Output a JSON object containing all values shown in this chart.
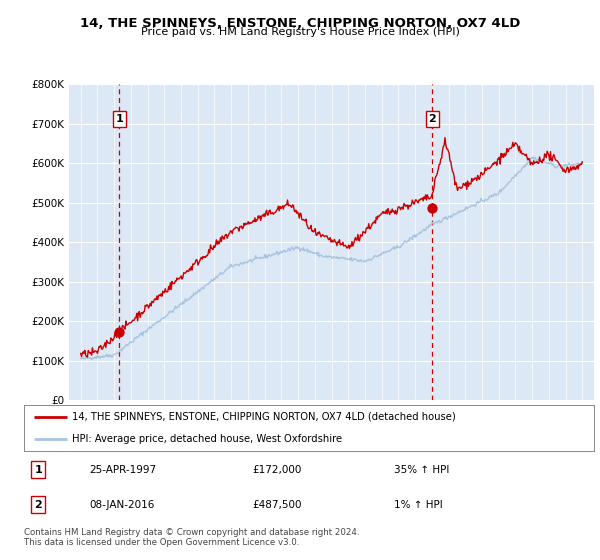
{
  "title": "14, THE SPINNEYS, ENSTONE, CHIPPING NORTON, OX7 4LD",
  "subtitle": "Price paid vs. HM Land Registry's House Price Index (HPI)",
  "legend_line1": "14, THE SPINNEYS, ENSTONE, CHIPPING NORTON, OX7 4LD (detached house)",
  "legend_line2": "HPI: Average price, detached house, West Oxfordshire",
  "marker1_label": "1",
  "marker2_label": "2",
  "marker1_date": "25-APR-1997",
  "marker1_price": "£172,000",
  "marker1_hpi": "35% ↑ HPI",
  "marker2_date": "08-JAN-2016",
  "marker2_price": "£487,500",
  "marker2_hpi": "1% ↑ HPI",
  "footer": "Contains HM Land Registry data © Crown copyright and database right 2024.\nThis data is licensed under the Open Government Licence v3.0.",
  "hpi_color": "#aac4e0",
  "price_color": "#cc0000",
  "marker_color": "#cc0000",
  "dashed_line_color": "#cc0000",
  "plot_bg_color": "#dce8f5",
  "ylim": [
    0,
    800000
  ],
  "yticks": [
    0,
    100000,
    200000,
    300000,
    400000,
    500000,
    600000,
    700000,
    800000
  ],
  "ytick_labels": [
    "£0",
    "£100K",
    "£200K",
    "£300K",
    "£400K",
    "£500K",
    "£600K",
    "£700K",
    "£800K"
  ],
  "year_start": 1995,
  "year_end": 2025,
  "marker1_year": 1997.32,
  "marker2_year": 2016.03,
  "marker1_value": 172000,
  "marker2_value": 487500
}
